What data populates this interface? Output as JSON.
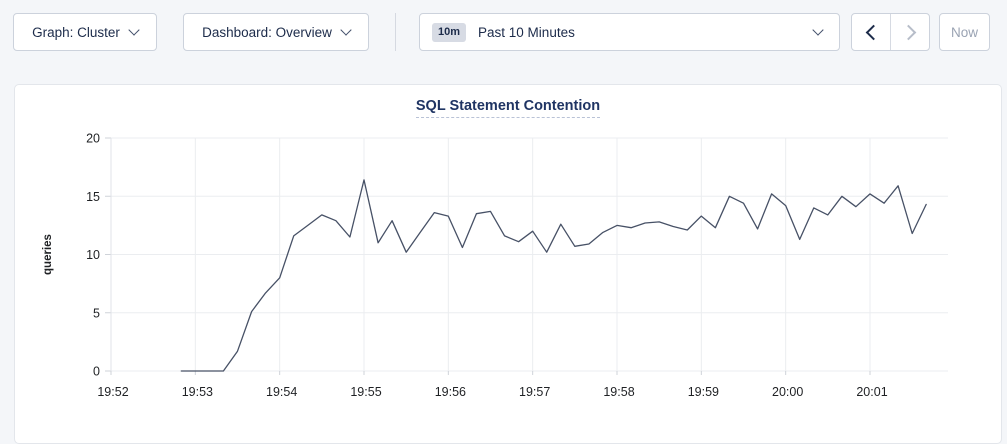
{
  "toolbar": {
    "graph_dropdown": {
      "label": "Graph: Cluster",
      "icon": "chevron-down"
    },
    "dashboard_dropdown": {
      "label": "Dashboard: Overview",
      "icon": "chevron-down"
    },
    "time_range": {
      "badge": "10m",
      "label": "Past 10 Minutes",
      "icon": "chevron-down"
    },
    "prev_button": {
      "icon": "chevron-left",
      "enabled": true
    },
    "next_button": {
      "icon": "chevron-right",
      "enabled": false
    },
    "now_button": {
      "label": "Now",
      "enabled": false
    }
  },
  "chart": {
    "title": "SQL Statement Contention",
    "ylabel": "queries"
  },
  "chart_data": {
    "type": "line",
    "title": "SQL Statement Contention",
    "ylabel": "queries",
    "ylim": [
      0,
      20
    ],
    "yticks": [
      0,
      5,
      10,
      15,
      20
    ],
    "x_ticks": [
      "19:52",
      "19:53",
      "19:54",
      "19:55",
      "19:56",
      "19:57",
      "19:58",
      "19:59",
      "20:00",
      "20:01"
    ],
    "grid": true,
    "legend": "none",
    "series": [
      {
        "name": "queries",
        "start_time": "19:52:50",
        "start_offset_seconds": 50,
        "interval_seconds": 10,
        "values": [
          0,
          0,
          0,
          0,
          1.7,
          5.1,
          6.7,
          8.0,
          11.6,
          12.5,
          13.4,
          12.9,
          11.5,
          16.4,
          11.0,
          12.9,
          10.2,
          11.9,
          13.6,
          13.3,
          10.6,
          13.5,
          13.7,
          11.6,
          11.1,
          12.0,
          10.2,
          12.6,
          10.7,
          10.9,
          11.9,
          12.5,
          12.3,
          12.7,
          12.8,
          12.4,
          12.1,
          13.3,
          12.3,
          15.0,
          14.4,
          12.2,
          15.2,
          14.2,
          11.3,
          14.0,
          13.4,
          15.0,
          14.1,
          15.2,
          14.4,
          15.9,
          11.8,
          14.3
        ]
      }
    ],
    "colors": {
      "line": "#475166",
      "grid": "#ebedf0",
      "axis": "#e0e3e8",
      "tick": "#cfd3d9",
      "tick_text": "#1f2124",
      "title": "#1f3463",
      "title_underline": "#b9c2d6"
    }
  }
}
